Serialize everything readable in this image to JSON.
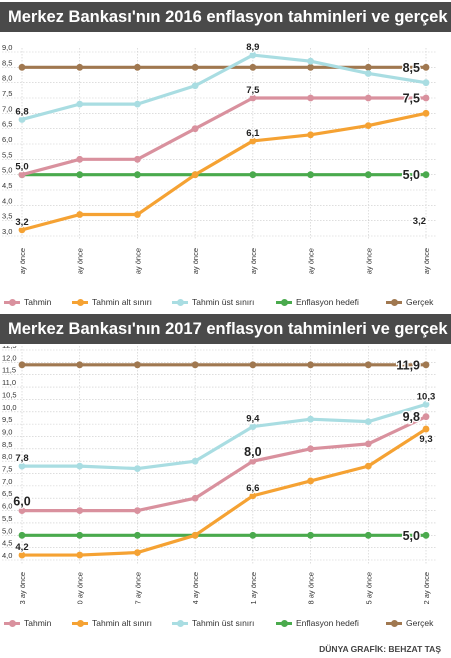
{
  "chart_data": [
    {
      "type": "line",
      "title": "Merkez Bankası'nın 2016 enflasyon tahminleri ve gerçek",
      "unit": "(%)",
      "categories": [
        "23 ay önce",
        "20 ay önce",
        "17 ay önce",
        "14 ay önce",
        "11 ay önce",
        "8 ay önce",
        "5 ay önce",
        "2 ay önce"
      ],
      "y_ticks": [
        "9,0",
        "8,5",
        "8,0",
        "7,5",
        "7,0",
        "6,5",
        "6,0",
        "5,5",
        "5,0",
        "4,5",
        "4,0",
        "3,5",
        "3,0"
      ],
      "ylim": [
        3.0,
        9.0
      ],
      "grid": true,
      "legend_position": "bottom",
      "series": [
        {
          "key": "tahmin",
          "name": "Tahmin",
          "color": "#d9919e",
          "values": [
            5.0,
            5.5,
            5.5,
            6.5,
            7.5,
            7.5,
            7.5,
            7.5
          ]
        },
        {
          "key": "alt",
          "name": "Tahmin alt sınırı",
          "color": "#f5a233",
          "values": [
            3.2,
            3.7,
            3.7,
            5.0,
            6.1,
            6.3,
            6.6,
            7.0
          ]
        },
        {
          "key": "ust",
          "name": "Tahmin üst sınırı",
          "color": "#a9dde2",
          "values": [
            6.8,
            7.3,
            7.3,
            7.9,
            8.9,
            8.7,
            8.3,
            8.0
          ]
        },
        {
          "key": "hedef",
          "name": "Enflasyon hedefi",
          "color": "#4aaa4d",
          "values": [
            5.0,
            5.0,
            5.0,
            5.0,
            5.0,
            5.0,
            5.0,
            5.0
          ]
        },
        {
          "key": "gercek",
          "name": "Gerçek",
          "color": "#a07850",
          "values": [
            8.5,
            8.5,
            8.5,
            8.5,
            8.5,
            8.5,
            8.5,
            8.5
          ]
        }
      ],
      "annotations": [
        {
          "text": "6,8",
          "series": "ust",
          "index": 0,
          "pos": "above",
          "size": "small"
        },
        {
          "text": "5,0",
          "series": "tahmin",
          "index": 0,
          "pos": "above",
          "size": "small"
        },
        {
          "text": "3,2",
          "series": "alt",
          "index": 0,
          "pos": "above",
          "size": "small"
        },
        {
          "text": "8,9",
          "series": "ust",
          "index": 4,
          "pos": "above",
          "size": "small"
        },
        {
          "text": "7,5",
          "series": "tahmin",
          "index": 4,
          "pos": "above",
          "size": "small"
        },
        {
          "text": "6,1",
          "series": "alt",
          "index": 4,
          "pos": "above",
          "size": "small"
        },
        {
          "text": "8,5",
          "series": "gercek",
          "index": 7,
          "pos": "left",
          "size": "large"
        },
        {
          "text": "7,5",
          "series": "tahmin",
          "index": 7,
          "pos": "left",
          "size": "large"
        },
        {
          "text": "5,0",
          "series": "hedef",
          "index": 7,
          "pos": "left",
          "size": "large"
        },
        {
          "text": "3,2",
          "series": "alt",
          "index": 7,
          "pos": "fixed",
          "value": 3.2,
          "size": "small"
        }
      ]
    },
    {
      "type": "line",
      "title": "Merkez Bankası'nın 2017 enflasyon tahminleri ve gerçek",
      "unit": "(%)",
      "categories": [
        "23 ay önce",
        "20 ay önce",
        "17 ay önce",
        "14 ay önce",
        "11 ay önce",
        "8 ay önce",
        "5 ay önce",
        "2 ay önce"
      ],
      "y_ticks": [
        "12,5",
        "12,0",
        "11,5",
        "11,0",
        "10,5",
        "10,0",
        "9,5",
        "9,0",
        "8,5",
        "8,0",
        "7,5",
        "7,0",
        "6,5",
        "6,0",
        "5,5",
        "5,0",
        "4,5",
        "4,0"
      ],
      "ylim": [
        4.0,
        12.5
      ],
      "grid": true,
      "legend_position": "bottom",
      "series": [
        {
          "key": "tahmin",
          "name": "Tahmin",
          "color": "#d9919e",
          "values": [
            6.0,
            6.0,
            6.0,
            6.5,
            8.0,
            8.5,
            8.7,
            9.8
          ]
        },
        {
          "key": "alt",
          "name": "Tahmin alt sınırı",
          "color": "#f5a233",
          "values": [
            4.2,
            4.2,
            4.3,
            5.0,
            6.6,
            7.2,
            7.8,
            9.3
          ]
        },
        {
          "key": "ust",
          "name": "Tahmin üst sınırı",
          "color": "#a9dde2",
          "values": [
            7.8,
            7.8,
            7.7,
            8.0,
            9.4,
            9.7,
            9.6,
            10.3
          ]
        },
        {
          "key": "hedef",
          "name": "Enflasyon hedefi",
          "color": "#4aaa4d",
          "values": [
            5.0,
            5.0,
            5.0,
            5.0,
            5.0,
            5.0,
            5.0,
            5.0
          ]
        },
        {
          "key": "gercek",
          "name": "Gerçek",
          "color": "#a07850",
          "values": [
            11.9,
            11.9,
            11.9,
            11.9,
            11.9,
            11.9,
            11.9,
            11.9
          ]
        }
      ],
      "annotations": [
        {
          "text": "7,8",
          "series": "ust",
          "index": 0,
          "pos": "above",
          "size": "small"
        },
        {
          "text": "6,0",
          "series": "tahmin",
          "index": 0,
          "pos": "above",
          "size": "large"
        },
        {
          "text": "4,2",
          "series": "alt",
          "index": 0,
          "pos": "above",
          "size": "small"
        },
        {
          "text": "9,4",
          "series": "ust",
          "index": 4,
          "pos": "above",
          "size": "small"
        },
        {
          "text": "8,0",
          "series": "tahmin",
          "index": 4,
          "pos": "above",
          "size": "large"
        },
        {
          "text": "6,6",
          "series": "alt",
          "index": 4,
          "pos": "above",
          "size": "small"
        },
        {
          "text": "11,9",
          "series": "gercek",
          "index": 7,
          "pos": "left",
          "size": "large"
        },
        {
          "text": "10,3",
          "series": "ust",
          "index": 7,
          "pos": "above",
          "size": "small"
        },
        {
          "text": "9,8",
          "series": "tahmin",
          "index": 7,
          "pos": "left",
          "size": "large"
        },
        {
          "text": "9,3",
          "series": "alt",
          "index": 7,
          "pos": "below",
          "size": "small"
        },
        {
          "text": "5,0",
          "series": "hedef",
          "index": 7,
          "pos": "left",
          "size": "large"
        }
      ]
    }
  ],
  "credit": "DÜNYA GRAFİK: BEHZAT TAŞ"
}
